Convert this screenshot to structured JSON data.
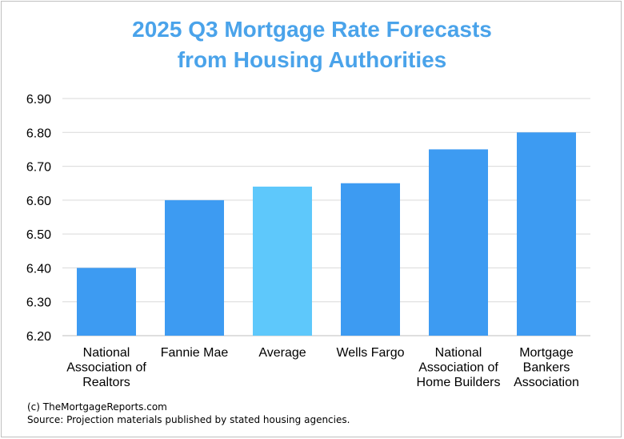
{
  "chart_data": {
    "type": "bar",
    "title_line1": "2025 Q3 Mortgage Rate Forecasts",
    "title_line2": "from Housing Authorities",
    "categories": [
      [
        "National",
        "Association of",
        "Realtors"
      ],
      [
        "Fannie Mae"
      ],
      [
        "Average"
      ],
      [
        "Wells Fargo"
      ],
      [
        "National",
        "Association of",
        "Home Builders"
      ],
      [
        "Mortgage",
        "Bankers",
        "Association"
      ]
    ],
    "values": [
      6.4,
      6.6,
      6.64,
      6.65,
      6.75,
      6.8
    ],
    "bar_colors": [
      "#3d9bf2",
      "#3d9bf2",
      "#5ec8fb",
      "#3d9bf2",
      "#3d9bf2",
      "#3d9bf2"
    ],
    "ylim": [
      6.2,
      6.9
    ],
    "yticks": [
      "6.20",
      "6.30",
      "6.40",
      "6.50",
      "6.60",
      "6.70",
      "6.80",
      "6.90"
    ],
    "grid": true,
    "legend": "none"
  },
  "footer": {
    "copyright": "(c) TheMortgageReports.com",
    "source": "Source: Projection materials published by stated housing agencies."
  },
  "colors": {
    "title": "#4aa3ea",
    "bar": "#3d9bf2",
    "highlight_bar": "#5ec8fb",
    "gridline": "#d9d9d9"
  }
}
